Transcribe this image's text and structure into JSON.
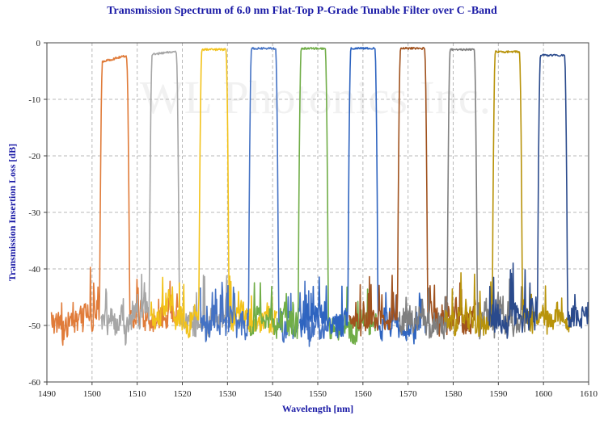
{
  "chart_data": {
    "type": "line",
    "title": "Transmission Spectrum of 6.0 nm Flat-Top P-Grade Tunable Filter over C -Band",
    "xlabel": "Wavelength [nm]",
    "ylabel": "Transmission Insertion Loss [dB]",
    "xlim": [
      1490,
      1610
    ],
    "ylim": [
      -60,
      0
    ],
    "xticks": [
      "1490",
      "1500",
      "1510",
      "1520",
      "1530",
      "1540",
      "1550",
      "1560",
      "1570",
      "1580",
      "1590",
      "1600",
      "1610"
    ],
    "yticks": [
      "0",
      "-10",
      "-20",
      "-30",
      "-40",
      "-50",
      "-60"
    ],
    "grid": true,
    "legend": "none",
    "watermark": "WL Photonics Inc.",
    "colors": {
      "title": "#1a1aa6",
      "axis_title": "#1a1aa6",
      "grid": "#b8b8b8"
    },
    "series": [
      {
        "center": 1505,
        "peak": -2.8,
        "tilt": 0.6,
        "color": "#e07b39",
        "floor": -49
      },
      {
        "center": 1516,
        "peak": -1.8,
        "tilt": 0.3,
        "color": "#a6a6a6",
        "floor": -49
      },
      {
        "center": 1527,
        "peak": -1.2,
        "tilt": 0.0,
        "color": "#f2c21a",
        "floor": -49
      },
      {
        "center": 1538,
        "peak": -1.0,
        "tilt": 0.0,
        "color": "#4472c4",
        "floor": -50
      },
      {
        "center": 1549,
        "peak": -1.0,
        "tilt": 0.0,
        "color": "#70ad47",
        "floor": -50
      },
      {
        "center": 1560,
        "peak": -1.0,
        "tilt": 0.0,
        "color": "#2e64c0",
        "floor": -50
      },
      {
        "center": 1571,
        "peak": -1.0,
        "tilt": 0.0,
        "color": "#a0521e",
        "floor": -49
      },
      {
        "center": 1582,
        "peak": -1.2,
        "tilt": 0.0,
        "color": "#7f7f7f",
        "floor": -49
      },
      {
        "center": 1592,
        "peak": -1.6,
        "tilt": 0.0,
        "color": "#b8930a",
        "floor": -49
      },
      {
        "center": 1602,
        "peak": -2.2,
        "tilt": 0.0,
        "color": "#2a4a8c",
        "floor": -49
      }
    ],
    "passband_width_nm": 6.0
  }
}
